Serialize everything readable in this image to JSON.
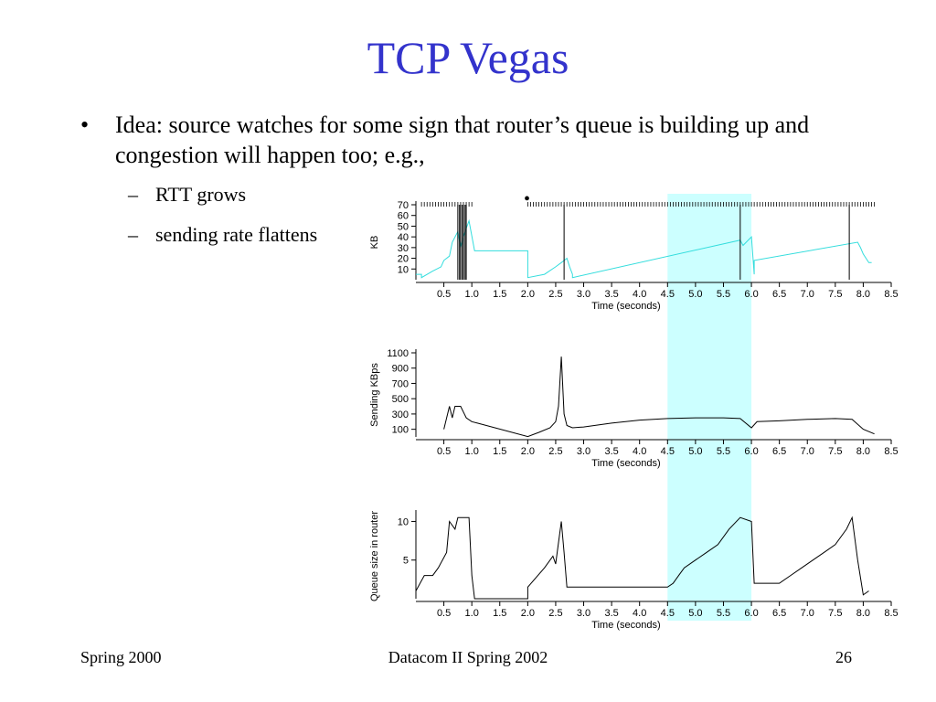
{
  "slide": {
    "title": "TCP Vegas",
    "bullet_marker": "•",
    "bullet": "Idea: source watches for some sign that router’s queue is building up and congestion will happen too; e.g.,",
    "sub_marker": "–",
    "sub_bullets": [
      "RTT grows",
      "sending rate flattens"
    ],
    "stray_mark": "•",
    "footer_left": "Spring 2000",
    "footer_center": "Datacom II Spring 2002",
    "footer_right": "26"
  },
  "colors": {
    "title": "#3333cc",
    "highlight": "#ccffff",
    "cwnd_line": "#33dddd",
    "axis": "#000000"
  },
  "chart_data": [
    {
      "type": "line",
      "ylabel": "KB",
      "xlabel": "Time (seconds)",
      "xlim": [
        0,
        8.5
      ],
      "ylim": [
        0,
        70
      ],
      "xticks": [
        0.5,
        1.0,
        1.5,
        2.0,
        2.5,
        3.0,
        3.5,
        4.0,
        4.5,
        5.0,
        5.5,
        6.0,
        6.5,
        7.0,
        7.5,
        8.0,
        8.5
      ],
      "yticks": [
        10,
        20,
        30,
        40,
        50,
        60,
        70
      ],
      "highlight_x": [
        4.5,
        6.0
      ],
      "series": [
        {
          "color": "#33dddd",
          "x": [
            0.0,
            0.1,
            0.1,
            0.3,
            0.45,
            0.5,
            0.6,
            0.65,
            0.75,
            0.8,
            0.85,
            0.9,
            0.95,
            1.05,
            1.05,
            2.0,
            2.0,
            2.3,
            2.5,
            2.6,
            2.7,
            2.75,
            2.8,
            2.8,
            5.8,
            5.85,
            6.0,
            6.05,
            6.05,
            7.9,
            7.95,
            8.0,
            8.1,
            8.15
          ],
          "y": [
            5,
            5,
            2,
            8,
            12,
            18,
            22,
            35,
            45,
            30,
            40,
            48,
            55,
            27,
            27,
            27,
            2,
            5,
            12,
            16,
            20,
            12,
            5,
            2,
            37,
            32,
            40,
            5,
            18,
            35,
            30,
            24,
            16,
            16
          ]
        },
        {
          "color": "#000000",
          "type": "vertical-lines",
          "x": [
            0.75,
            0.78,
            0.8,
            0.83,
            0.85,
            0.88,
            0.9,
            2.65,
            5.8,
            7.75
          ]
        }
      ],
      "top_markers_x_ranges": [
        [
          0.1,
          1.0
        ],
        [
          2.0,
          8.2
        ]
      ]
    },
    {
      "type": "line",
      "ylabel": "Sending KBps",
      "xlabel": "Time (seconds)",
      "xlim": [
        0,
        8.5
      ],
      "ylim": [
        0,
        1100
      ],
      "xticks": [
        0.5,
        1.0,
        1.5,
        2.0,
        2.5,
        3.0,
        3.5,
        4.0,
        4.5,
        5.0,
        5.5,
        6.0,
        6.5,
        7.0,
        7.5,
        8.0,
        8.5
      ],
      "yticks": [
        100,
        300,
        500,
        700,
        900,
        1100
      ],
      "highlight_x": [
        4.5,
        6.0
      ],
      "series": [
        {
          "color": "#000000",
          "x": [
            0.5,
            0.6,
            0.65,
            0.7,
            0.8,
            0.9,
            1.0,
            1.1,
            2.0,
            2.2,
            2.4,
            2.5,
            2.55,
            2.6,
            2.65,
            2.7,
            2.8,
            3.0,
            3.5,
            4.0,
            4.5,
            5.0,
            5.5,
            5.8,
            6.0,
            6.1,
            6.5,
            7.0,
            7.5,
            7.8,
            8.0,
            8.2
          ],
          "y": [
            100,
            400,
            250,
            400,
            400,
            250,
            200,
            180,
            5,
            60,
            120,
            200,
            400,
            1050,
            300,
            150,
            120,
            130,
            180,
            220,
            240,
            250,
            250,
            240,
            120,
            200,
            210,
            230,
            240,
            230,
            100,
            40
          ]
        }
      ]
    },
    {
      "type": "line",
      "ylabel": "Queue size in router",
      "xlabel": "Time (seconds)",
      "xlim": [
        0,
        8.5
      ],
      "ylim": [
        0,
        11
      ],
      "xticks": [
        0.5,
        1.0,
        1.5,
        2.0,
        2.5,
        3.0,
        3.5,
        4.0,
        4.5,
        5.0,
        5.5,
        6.0,
        6.5,
        7.0,
        7.5,
        8.0,
        8.5
      ],
      "yticks": [
        5,
        10
      ],
      "highlight_x": [
        4.5,
        6.0
      ],
      "series": [
        {
          "color": "#000000",
          "x": [
            0.0,
            0.15,
            0.3,
            0.4,
            0.55,
            0.6,
            0.7,
            0.75,
            0.95,
            1.0,
            1.05,
            2.0,
            2.0,
            2.3,
            2.45,
            2.5,
            2.6,
            2.65,
            2.7,
            4.5,
            4.6,
            4.7,
            4.8,
            5.0,
            5.2,
            5.4,
            5.6,
            5.8,
            6.0,
            6.05,
            6.5,
            6.7,
            6.9,
            7.1,
            7.3,
            7.5,
            7.7,
            7.8,
            7.9,
            8.0,
            8.1
          ],
          "y": [
            1,
            3,
            3,
            4,
            6,
            10,
            9,
            10.5,
            10.5,
            3,
            0,
            0,
            1.5,
            4,
            5.5,
            4.5,
            10,
            6,
            1.5,
            1.5,
            2,
            3,
            4,
            5,
            6,
            7,
            9,
            10.5,
            10,
            2,
            2,
            3,
            4,
            5,
            6,
            7,
            9,
            10.5,
            5,
            0.5,
            1
          ]
        }
      ]
    }
  ]
}
